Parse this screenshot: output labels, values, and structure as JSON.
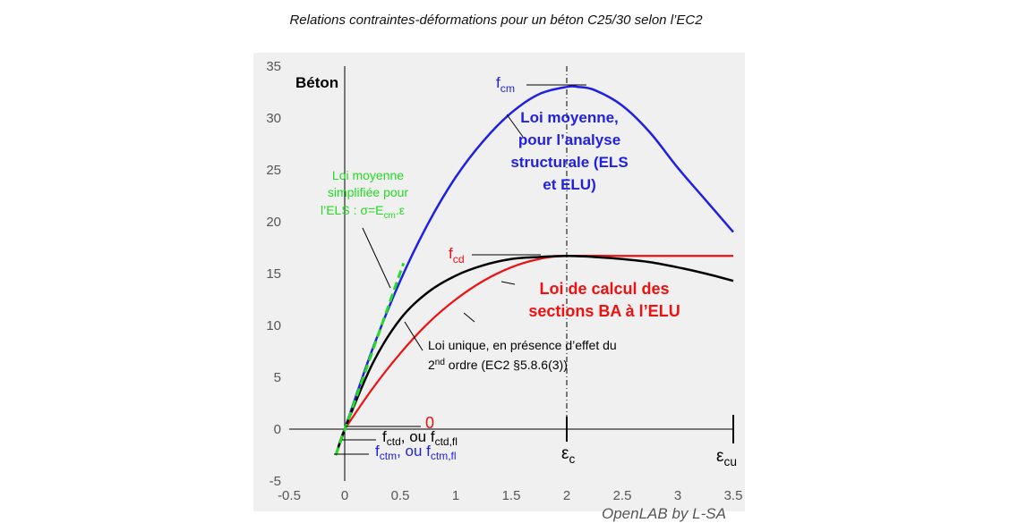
{
  "title": "Relations contraintes-déformations pour un  béton C25/30 selon l’EC2",
  "footer": "OpenLAB by L-SA",
  "colors": {
    "moyenne": "#1f1fe6",
    "calcul": "#ee1111",
    "unique": "#000000",
    "simplifiee": "#22dd22",
    "background": "#f0f0f0"
  },
  "chart_data": {
    "type": "line",
    "xlim": [
      -0.5,
      3.5
    ],
    "ylim": [
      -5,
      35
    ],
    "xticks": [
      "-0.5",
      "0",
      "0.5",
      "1",
      "1.5",
      "2",
      "2.5",
      "3",
      "3.5"
    ],
    "yticks": [
      "35",
      "30",
      "25",
      "20",
      "15",
      "10",
      "5",
      "0",
      "-5"
    ],
    "grid": false,
    "corner_label": "Béton",
    "series": [
      {
        "id": "moyenne",
        "x": [
          -0.08,
          0,
          0.25,
          0.5,
          0.75,
          1.0,
          1.25,
          1.5,
          1.75,
          2.0,
          2.1,
          2.25,
          2.5,
          2.75,
          3.0,
          3.25,
          3.5
        ],
        "y": [
          -2.5,
          0,
          7.7,
          14.3,
          19.8,
          24.3,
          27.8,
          30.5,
          32.3,
          33.0,
          33.0,
          32.7,
          31.2,
          28.6,
          25.2,
          22.1,
          19.0
        ]
      },
      {
        "id": "calcul",
        "x": [
          0,
          0.25,
          0.5,
          0.75,
          1.0,
          1.25,
          1.5,
          1.75,
          2.0,
          2.5,
          3.0,
          3.5
        ],
        "y": [
          0,
          3.9,
          7.3,
          10.2,
          12.5,
          14.3,
          15.6,
          16.4,
          16.7,
          16.7,
          16.7,
          16.7
        ]
      },
      {
        "id": "unique",
        "x": [
          -0.08,
          0,
          0.25,
          0.5,
          0.75,
          1.0,
          1.25,
          1.5,
          1.75,
          2.0,
          2.25,
          2.5,
          2.75,
          3.0,
          3.25,
          3.5
        ],
        "y": [
          -2.5,
          0,
          6.3,
          10.6,
          13.2,
          14.8,
          15.8,
          16.4,
          16.6,
          16.7,
          16.6,
          16.4,
          16.1,
          15.6,
          15.0,
          14.3
        ]
      },
      {
        "id": "simplifiee",
        "x": [
          -0.08,
          0.53
        ],
        "y": [
          -2.5,
          16.0
        ]
      }
    ],
    "annotations": {
      "fcm": {
        "base": "f",
        "sub": "cm"
      },
      "fcd": {
        "base": "f",
        "sub": "cd"
      },
      "zero": "0",
      "fctd": {
        "base": "f",
        "sub": "ctd",
        "mid": ", ou f",
        "sub2": "ctd,fl"
      },
      "fctm": {
        "base": "f",
        "sub": "ctm",
        "mid": ", ou f",
        "sub2": "ctm,fl"
      },
      "eps_c": {
        "base": "ε",
        "sub": "c"
      },
      "eps_cu": {
        "base": "ε",
        "sub": "cu"
      },
      "moyenne_lines": [
        "Loi moyenne,",
        "pour l’analyse",
        "structurale (ELS",
        "et ELU)"
      ],
      "calcul_lines": [
        "Loi de calcul des",
        "sections BA à l’ELU"
      ],
      "simplifiee": {
        "line1": "Loi moyenne",
        "line2": "simplifiée pour",
        "line3_pre": "l’ELS : σ=E",
        "line3_sub": "cm",
        "line3_post": ".ε"
      },
      "unique": {
        "line1": "Loi unique, en présence d’effet du",
        "line2_pre": "2",
        "line2_sup": "nd",
        "line2_post": " ordre (EC2 §5.8.6(3))"
      }
    }
  }
}
